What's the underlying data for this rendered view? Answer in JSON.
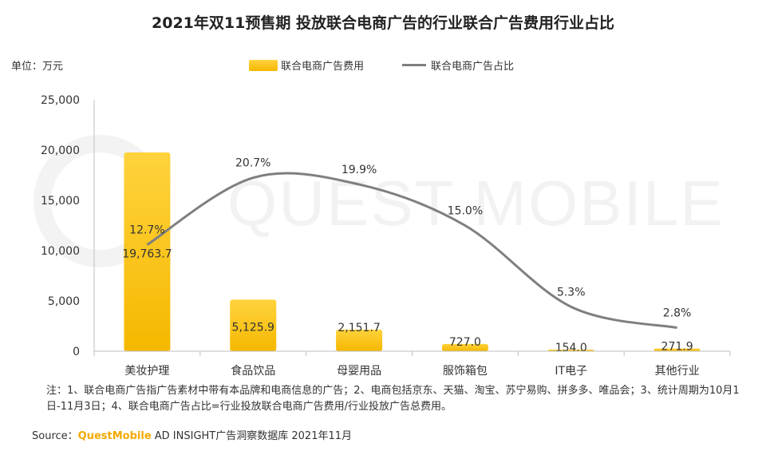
{
  "title": "2021年双11预售期 投放联合电商广告的行业联合广告费用行业占比",
  "unit_label": "单位：万元",
  "legend": {
    "bar": "联合电商广告费用",
    "line": "联合电商广告占比"
  },
  "watermark": "QUEST MOBILE",
  "note": "注：1、联合电商广告指广告素材中带有本品牌和电商信息的广告；2、电商包括京东、天猫、淘宝、苏宁易购、拼多多、唯品会；3、统计周期为10月1日-11月3日；4、联合电商广告占比=行业投放联合电商广告费用/行业投放广告总费用。",
  "source": {
    "prefix": "Source：",
    "brand": "QuestMobile",
    "rest": " AD INSIGHT广告洞察数据库 2021年11月"
  },
  "colors": {
    "bar_top": "#ffd33d",
    "bar_bottom": "#f5b800",
    "line": "#7f7f7f"
  },
  "chart_data": {
    "type": "bar",
    "categories": [
      "美妆护理",
      "食品饮品",
      "母婴用品",
      "服饰箱包",
      "IT电子",
      "其他行业"
    ],
    "series": [
      {
        "name": "联合电商广告费用",
        "kind": "bar",
        "values": [
          19763.7,
          5125.9,
          2151.7,
          727.0,
          154.0,
          271.9
        ],
        "labels": [
          "19,763.7",
          "5,125.9",
          "2,151.7",
          "727.0",
          "154.0",
          "271.9"
        ]
      },
      {
        "name": "联合电商广告占比",
        "kind": "line",
        "unit": "%",
        "values": [
          12.7,
          20.7,
          19.9,
          15.0,
          5.3,
          2.8
        ],
        "labels": [
          "12.7%",
          "20.7%",
          "19.9%",
          "15.0%",
          "5.3%",
          "2.8%"
        ]
      }
    ],
    "ylim": [
      0,
      25000
    ],
    "yticks": [
      0,
      5000,
      10000,
      15000,
      20000,
      25000
    ],
    "ytick_labels": [
      "0",
      "5,000",
      "10,000",
      "15,000",
      "20,000",
      "25,000"
    ],
    "line_axis_range": [
      0,
      30
    ],
    "legend_position": "top-center"
  }
}
